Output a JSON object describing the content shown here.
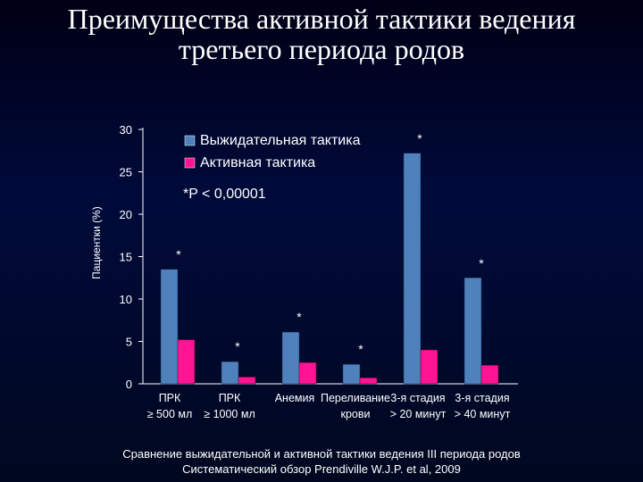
{
  "title_lines": [
    "Преимущества активной тактики ведения",
    "третьего периода родов"
  ],
  "caption_lines": [
    "Сравнение выжидательной и активной тактики ведения III периода родов",
    "Систематический обзор Prendiville W.J.P.  et  al, 2009"
  ],
  "colors": {
    "expectant": "#4f81bd",
    "active": "#ff1493",
    "axis": "#ffffff"
  },
  "chart_data": {
    "type": "bar",
    "ylabel": "Пациентки (%)",
    "ylim": [
      0,
      30
    ],
    "yticks": [
      "0",
      "5",
      "10",
      "15",
      "20",
      "25",
      "30"
    ],
    "categories": [
      [
        "ПРК",
        "≥ 500 мл"
      ],
      [
        "ПРК",
        "≥ 1000 мл"
      ],
      [
        "Анемия",
        ""
      ],
      [
        "Переливание",
        "крови"
      ],
      [
        "3-я стадия",
        "> 20 минут"
      ],
      [
        "3-я стадия",
        "> 40 минут"
      ]
    ],
    "series": [
      {
        "name": "Выжидательная тактика",
        "values": [
          13.5,
          2.6,
          6.1,
          2.3,
          27.2,
          12.5
        ]
      },
      {
        "name": "Активная тактика",
        "values": [
          5.2,
          0.8,
          2.5,
          0.7,
          4.0,
          2.2
        ]
      }
    ],
    "significance_markers": [
      "*",
      "*",
      "*",
      "*",
      "*",
      "*"
    ],
    "annotation": "*P < 0,00001",
    "legend_position": "top"
  }
}
